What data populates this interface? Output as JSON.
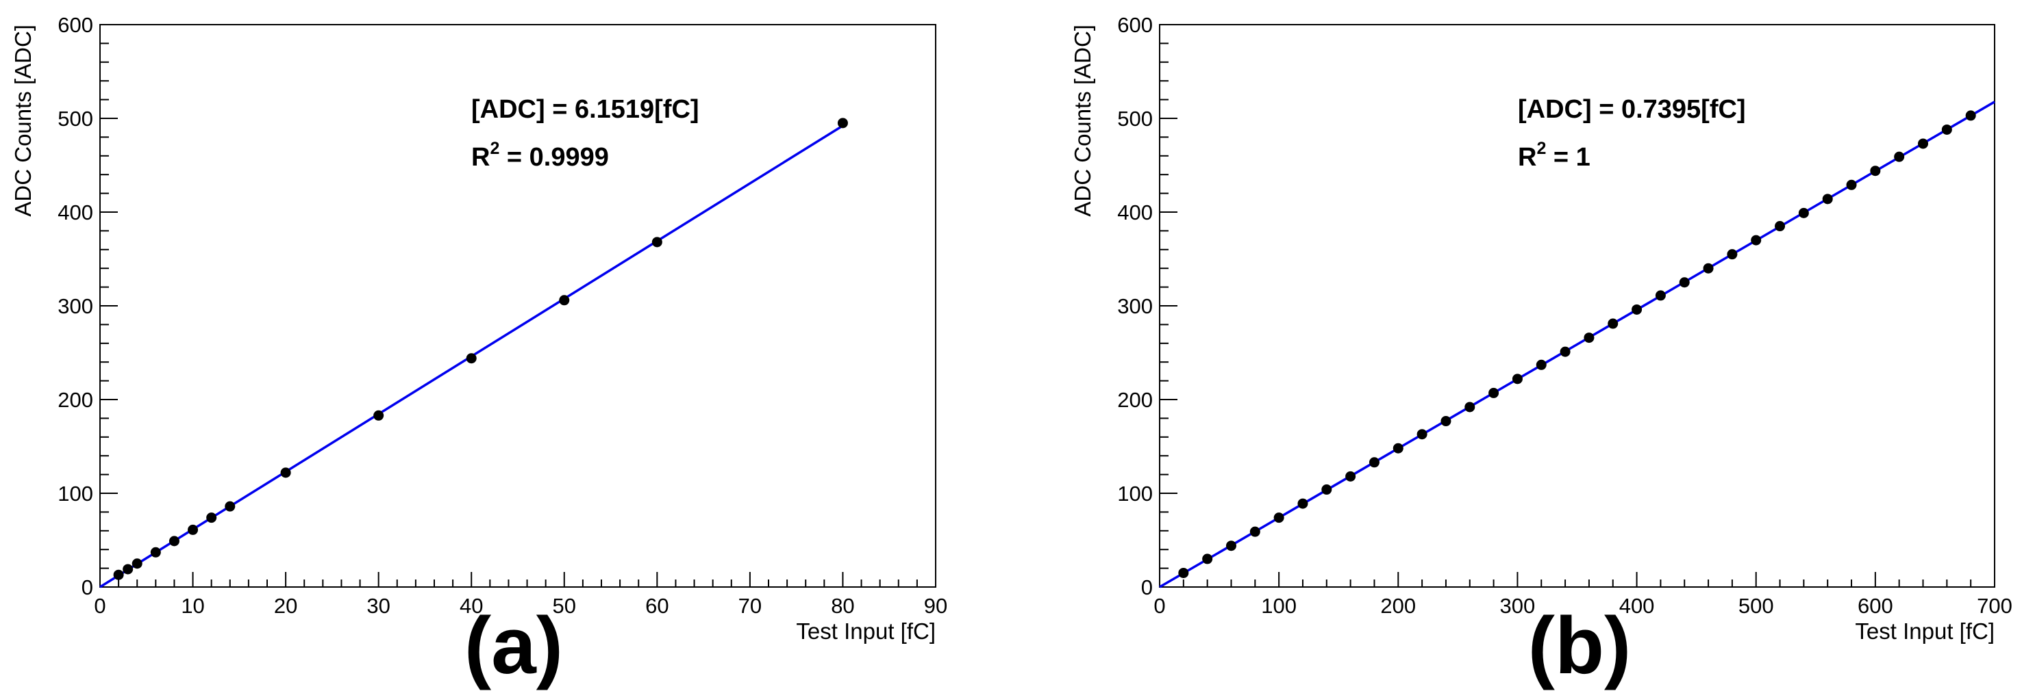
{
  "chart_data": [
    {
      "type": "scatter",
      "panel_label": "(a)",
      "xlabel": "Test Input [fC]",
      "ylabel": "ADC Counts [ADC]",
      "xlim": [
        0,
        90
      ],
      "ylim": [
        0,
        600
      ],
      "x_ticks": [
        0,
        10,
        20,
        30,
        40,
        50,
        60,
        70,
        80,
        90
      ],
      "y_ticks": [
        0,
        100,
        200,
        300,
        400,
        500,
        600
      ],
      "grid": false,
      "fit": {
        "slope": 6.1519,
        "intercept": 0,
        "x_range": [
          0,
          80
        ]
      },
      "annotations": [
        "[ADC] = 6.1519[fC]",
        "R",
        "2",
        " = 0.9999"
      ],
      "marker_color": "#000000",
      "line_color": "#0000ee",
      "series": [
        {
          "x": [
            2,
            3,
            4,
            6,
            8,
            10,
            12,
            14,
            20,
            30,
            40,
            50,
            60,
            80
          ],
          "y": [
            13,
            19,
            25,
            37,
            49,
            61,
            74,
            86,
            122,
            183,
            244,
            306,
            368,
            495
          ]
        }
      ]
    },
    {
      "type": "scatter",
      "panel_label": "(b)",
      "xlabel": "Test Input [fC]",
      "ylabel": "ADC Counts [ADC]",
      "xlim": [
        0,
        700
      ],
      "ylim": [
        0,
        600
      ],
      "x_ticks": [
        0,
        100,
        200,
        300,
        400,
        500,
        600,
        700
      ],
      "y_ticks": [
        0,
        100,
        200,
        300,
        400,
        500,
        600
      ],
      "grid": false,
      "fit": {
        "slope": 0.7395,
        "intercept": 0,
        "x_range": [
          0,
          700
        ]
      },
      "annotations": [
        "[ADC] = 0.7395[fC]",
        "R",
        "2",
        " = 1"
      ],
      "marker_color": "#000000",
      "line_color": "#0000ee",
      "series": [
        {
          "x": [
            20,
            40,
            60,
            80,
            100,
            120,
            140,
            160,
            180,
            200,
            220,
            240,
            260,
            280,
            300,
            320,
            340,
            360,
            380,
            400,
            420,
            440,
            460,
            480,
            500,
            520,
            540,
            560,
            580,
            600,
            620,
            640,
            660,
            680
          ],
          "y": [
            15,
            30,
            44,
            59,
            74,
            89,
            104,
            118,
            133,
            148,
            163,
            177,
            192,
            207,
            222,
            237,
            251,
            266,
            281,
            296,
            311,
            325,
            340,
            355,
            370,
            385,
            399,
            414,
            429,
            444,
            459,
            473,
            488,
            503
          ]
        }
      ]
    }
  ]
}
